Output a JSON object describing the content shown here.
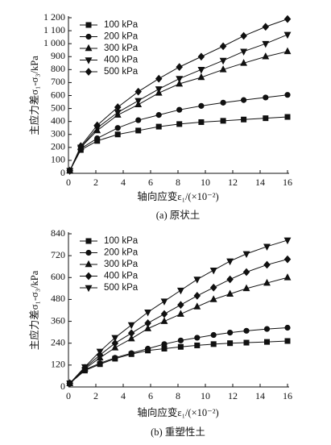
{
  "chart_data": [
    {
      "type": "line",
      "caption": "(a) 原状土",
      "x_label": "轴向应变ε₁/(×10⁻²)",
      "y_label": "主应力差σ₁-σ₃/kPa",
      "x": [
        0.1,
        0.9,
        2.1,
        3.6,
        5.1,
        6.6,
        8.1,
        9.7,
        11.3,
        12.8,
        14.4,
        16
      ],
      "xlim": [
        0,
        16
      ],
      "xticks": [
        0,
        2,
        4,
        6,
        8,
        10,
        12,
        14,
        16
      ],
      "ylim": [
        0,
        1200
      ],
      "yticks": [
        0,
        100,
        200,
        300,
        400,
        500,
        600,
        700,
        800,
        900,
        {
          "value": 1000,
          "label": "1 000"
        },
        {
          "value": 1100,
          "label": "1 100"
        },
        {
          "value": 1200,
          "label": "1 200"
        }
      ],
      "series": [
        {
          "name": "100 kPa",
          "color": "#111111",
          "marker": "square",
          "values": [
            20,
            180,
            250,
            300,
            330,
            360,
            380,
            395,
            405,
            415,
            425,
            435
          ]
        },
        {
          "name": "200 kPa",
          "color": "#111111",
          "marker": "circle",
          "values": [
            20,
            190,
            270,
            350,
            410,
            450,
            490,
            520,
            545,
            565,
            585,
            605
          ]
        },
        {
          "name": "300 kPa",
          "color": "#111111",
          "marker": "triangle-up",
          "values": [
            20,
            200,
            330,
            450,
            530,
            620,
            690,
            740,
            800,
            850,
            900,
            940
          ]
        },
        {
          "name": "400 kPa",
          "color": "#111111",
          "marker": "triangle-down",
          "values": [
            20,
            200,
            350,
            470,
            560,
            650,
            730,
            800,
            870,
            940,
            1000,
            1070
          ]
        },
        {
          "name": "500 kPa",
          "color": "#111111",
          "marker": "diamond",
          "values": [
            20,
            210,
            370,
            510,
            630,
            730,
            820,
            900,
            980,
            1060,
            1130,
            1190
          ]
        }
      ]
    },
    {
      "type": "line",
      "caption": "(b) 重塑性土",
      "x_label": "轴向应变ε₁/(×10⁻²)",
      "y_label": "主应力差σ₁-σ₃/kPa",
      "x": [
        0.1,
        1.2,
        2.3,
        3.4,
        4.6,
        5.8,
        7,
        8.2,
        9.4,
        10.6,
        11.8,
        13,
        14.5,
        16
      ],
      "xlim": [
        0,
        16
      ],
      "xticks": [
        0,
        2,
        4,
        6,
        8,
        10,
        12,
        14,
        16
      ],
      "ylim": [
        0,
        840
      ],
      "yticks": [
        0,
        120,
        240,
        360,
        480,
        600,
        720,
        840
      ],
      "series": [
        {
          "name": "100 kPa",
          "color": "#111111",
          "marker": "square",
          "values": [
            20,
            90,
            125,
            155,
            180,
            200,
            210,
            220,
            228,
            235,
            240,
            243,
            247,
            252
          ]
        },
        {
          "name": "200 kPa",
          "color": "#111111",
          "marker": "circle",
          "values": [
            20,
            95,
            130,
            160,
            185,
            210,
            235,
            255,
            270,
            285,
            298,
            308,
            318,
            325
          ]
        },
        {
          "name": "300 kPa",
          "color": "#111111",
          "marker": "triangle-up",
          "values": [
            20,
            100,
            160,
            215,
            265,
            320,
            360,
            400,
            440,
            480,
            510,
            540,
            570,
            600
          ]
        },
        {
          "name": "400 kPa",
          "color": "#111111",
          "marker": "diamond",
          "values": [
            20,
            105,
            175,
            240,
            295,
            350,
            400,
            450,
            500,
            545,
            590,
            630,
            670,
            700
          ]
        },
        {
          "name": "500 kPa",
          "color": "#111111",
          "marker": "triangle-down",
          "values": [
            20,
            110,
            195,
            270,
            340,
            410,
            470,
            530,
            590,
            640,
            690,
            730,
            770,
            805
          ]
        }
      ]
    }
  ]
}
